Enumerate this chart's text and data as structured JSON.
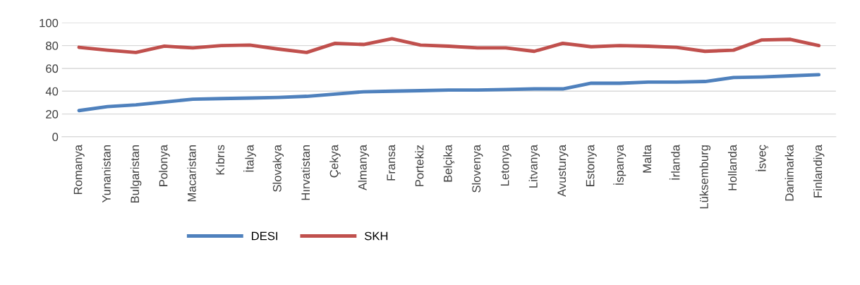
{
  "chart_data": {
    "type": "line",
    "categories": [
      "Romanya",
      "Yunanistan",
      "Bulgaristan",
      "Polonya",
      "Macaristan",
      "Kıbrıs",
      "İtalya",
      "Slovakya",
      "Hırvatistan",
      "Çekya",
      "Almanya",
      "Fransa",
      "Portekiz",
      "Belçika",
      "Slovenya",
      "Letonya",
      "Litvanya",
      "Avusturya",
      "Estonya",
      "İspanya",
      "Malta",
      "İrlanda",
      "Lüksemburg",
      "Hollanda",
      "İsveç",
      "Danimarka",
      "Finlandiya"
    ],
    "series": [
      {
        "name": "DESI",
        "color": "#4f81bd",
        "values": [
          23,
          26.5,
          28,
          30.5,
          33,
          33.5,
          34,
          34.5,
          35.5,
          37.5,
          39.5,
          40,
          40.5,
          41,
          41,
          41.5,
          42,
          42,
          47,
          47,
          48,
          48,
          48.5,
          52,
          52.5,
          53.5,
          54.5
        ]
      },
      {
        "name": "SKH",
        "color": "#c0504d",
        "values": [
          78.5,
          76,
          74,
          79.5,
          78,
          80,
          80.5,
          77,
          74,
          82,
          81,
          86,
          80.5,
          79.5,
          78,
          78,
          75,
          82,
          79,
          80,
          79.5,
          78.5,
          75,
          76,
          85,
          85.5,
          80
        ]
      }
    ],
    "ylim": [
      0,
      100
    ],
    "yticks": [
      0,
      20,
      40,
      60,
      80,
      100
    ],
    "grid": "y",
    "legend": "bottom left",
    "marker": "none",
    "line_style": "solid"
  }
}
